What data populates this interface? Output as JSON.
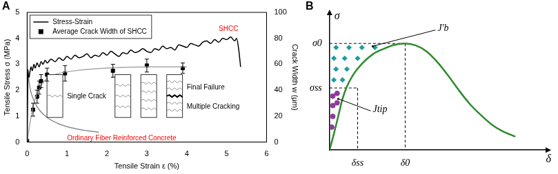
{
  "chart_data": [
    {
      "panel": "A",
      "type": "line",
      "xlabel": "Tensile Strain ε (%)",
      "ylabel": "Tensile Stress σ (MPa)",
      "y2label": "Crack Width w (μm)",
      "xlim": [
        0,
        6
      ],
      "xticks": [
        0,
        1,
        2,
        3,
        4,
        5,
        6
      ],
      "ylim": [
        0,
        5
      ],
      "yticks": [
        0,
        1,
        2,
        3,
        4,
        5
      ],
      "y2lim": [
        0,
        100
      ],
      "y2ticks": [
        0,
        20,
        40,
        60,
        80,
        100
      ],
      "grid": false,
      "legend": "upper left",
      "series": [
        {
          "name": "Stress-Strain",
          "color": "#000000",
          "line_style": "solid",
          "marker": "none",
          "x": [
            0,
            0.01,
            0.02,
            0.03,
            0.05,
            0.07,
            0.1,
            0.13,
            0.17,
            0.2,
            0.25,
            0.3,
            0.35,
            0.4,
            0.45,
            0.5,
            0.6,
            0.7,
            0.8,
            0.9,
            1.0,
            1.1,
            1.2,
            1.3,
            1.4,
            1.5,
            1.6,
            1.7,
            1.8,
            1.9,
            2.0,
            2.1,
            2.2,
            2.3,
            2.4,
            2.5,
            2.6,
            2.7,
            2.8,
            2.9,
            3.0,
            3.1,
            3.2,
            3.3,
            3.4,
            3.5,
            3.6,
            3.7,
            3.8,
            3.9,
            4.0,
            4.1,
            4.2,
            4.3,
            4.4,
            4.5,
            4.6,
            4.7,
            4.8,
            4.9,
            5.0,
            5.1,
            5.2,
            5.25,
            5.3,
            5.35
          ],
          "values": [
            0,
            1.6,
            2.8,
            2.6,
            2.5,
            2.7,
            2.9,
            2.75,
            3.0,
            2.85,
            3.05,
            2.9,
            3.1,
            3.0,
            3.15,
            3.05,
            3.2,
            3.1,
            3.25,
            3.15,
            3.3,
            3.2,
            3.35,
            3.25,
            3.3,
            3.4,
            3.25,
            3.35,
            3.3,
            3.45,
            3.35,
            3.5,
            3.4,
            3.3,
            3.45,
            3.4,
            3.55,
            3.45,
            3.5,
            3.6,
            3.5,
            3.45,
            3.6,
            3.55,
            3.7,
            3.6,
            3.65,
            3.55,
            3.75,
            3.7,
            3.65,
            3.8,
            3.75,
            3.7,
            3.85,
            3.9,
            3.8,
            3.95,
            3.85,
            4.0,
            3.95,
            4.05,
            3.9,
            4.0,
            3.6,
            2.9
          ]
        },
        {
          "color": "#8c8c8c",
          "line_style": "solid",
          "marker": "none",
          "x": [
            0,
            0.02,
            0.05,
            0.1,
            0.2,
            0.3,
            0.5,
            0.8,
            1.2,
            1.5,
            1.8
          ],
          "values": [
            0,
            2.7,
            2.3,
            1.9,
            1.5,
            1.25,
            0.95,
            0.7,
            0.52,
            0.44,
            0.38
          ]
        },
        {
          "color": "#a6a6a6",
          "line_style": "solid",
          "marker": "none",
          "axis": "y2",
          "x": [
            0,
            0.1,
            0.2,
            0.3,
            0.5,
            0.8,
            1.2,
            2,
            3,
            4
          ],
          "values": [
            0,
            20,
            33,
            41,
            49,
            53,
            55,
            57,
            58,
            58
          ]
        },
        {
          "name": "Average Crack Width of SHCC",
          "type": "scatter",
          "marker": "square",
          "color": "#000000",
          "axis": "y2",
          "x": [
            0,
            0.15,
            0.25,
            0.3,
            0.35,
            0.5,
            0.95,
            2.15,
            3.0,
            3.9
          ],
          "values": [
            1,
            25,
            35,
            42,
            47,
            52,
            53,
            55,
            59,
            57
          ],
          "errors": [
            0,
            5,
            5,
            5,
            5,
            5,
            6,
            5,
            5,
            4
          ]
        }
      ],
      "annotations": [
        {
          "text": "SHCC",
          "x": 4.8,
          "y": 4.35,
          "color": "#ff0000"
        },
        {
          "text": "Ordinary Fiber Reinforced Concrete",
          "x": 1.0,
          "y": 0.15,
          "color": "#ff0000"
        },
        {
          "text": "Single Crack",
          "x": 1.0,
          "y": 1.75,
          "color": "#000000"
        },
        {
          "text": "Final Failure",
          "x": 4.0,
          "y": 2.1,
          "color": "#000000"
        },
        {
          "text": "Multiple Cracking",
          "x": 4.0,
          "y": 1.35,
          "color": "#000000"
        }
      ]
    },
    {
      "panel": "B",
      "type": "line",
      "xlabel": "δ",
      "ylabel": "σ",
      "xlim": [
        0,
        1
      ],
      "xticks": [
        {
          "value": 0.13,
          "label": "δss"
        },
        {
          "value": 0.35,
          "label": "δ0"
        }
      ],
      "ylim": [
        0,
        1
      ],
      "yticks": [
        {
          "value": 0.46,
          "label": "σss"
        },
        {
          "value": 0.79,
          "label": "σ0"
        }
      ],
      "grid": false,
      "series": [
        {
          "color": "#2e8b2e",
          "line_style": "solid",
          "marker": "none",
          "x": [
            0,
            0.02,
            0.04,
            0.06,
            0.08,
            0.11,
            0.15,
            0.2,
            0.25,
            0.3,
            0.35,
            0.4,
            0.45,
            0.5,
            0.55,
            0.6,
            0.65,
            0.7,
            0.75,
            0.8,
            0.86
          ],
          "values": [
            0,
            0.12,
            0.25,
            0.38,
            0.47,
            0.56,
            0.64,
            0.71,
            0.75,
            0.78,
            0.79,
            0.775,
            0.73,
            0.65,
            0.55,
            0.44,
            0.34,
            0.26,
            0.19,
            0.14,
            0.1
          ]
        },
        {
          "type": "scatter",
          "marker": "diamond",
          "color": "#1a9e9e",
          "x": [
            0.03,
            0.09,
            0.15,
            0.21,
            0.02,
            0.07,
            0.13,
            0.03,
            0.08,
            0.02,
            0.06
          ],
          "values": [
            0.76,
            0.76,
            0.76,
            0.76,
            0.68,
            0.68,
            0.68,
            0.6,
            0.6,
            0.52,
            0.52
          ]
        },
        {
          "type": "scatter",
          "marker": "circle",
          "color": "#8e3a9e",
          "x": [
            0.015,
            0.035,
            0.015,
            0.035,
            0.015,
            0.01
          ],
          "values": [
            0.4,
            0.42,
            0.33,
            0.35,
            0.25,
            0.17
          ]
        }
      ],
      "annotations": [
        {
          "text": "J'b",
          "x": 0.5,
          "y": 0.9,
          "xy": [
            0.2,
            0.77
          ],
          "color": "#000000"
        },
        {
          "text": "Jtip",
          "x": 0.2,
          "y": 0.3,
          "xy": [
            0.04,
            0.38
          ],
          "color": "#000000"
        }
      ]
    }
  ]
}
